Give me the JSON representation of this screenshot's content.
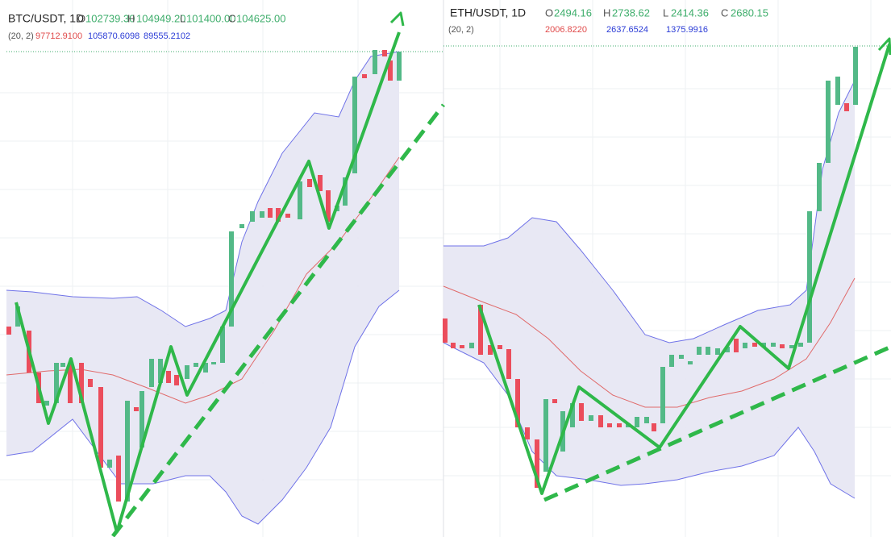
{
  "left": {
    "symbol": "BTC/USDT, 1D",
    "ohlc": [
      {
        "label": "O",
        "value": "102739.30"
      },
      {
        "label": "H",
        "value": "104949.20"
      },
      {
        "label": "L",
        "value": "101400.00"
      },
      {
        "label": "C",
        "value": "104625.00"
      }
    ],
    "indicator": {
      "params": "(20, 2)",
      "basis": "97712.9100",
      "upper": "105870.6098",
      "lower": "89555.2102"
    }
  },
  "right": {
    "symbol": "ETH/USDT, 1D",
    "ohlc": [
      {
        "label": "O",
        "value": "2494.16"
      },
      {
        "label": "H",
        "value": "2738.62"
      },
      {
        "label": "L",
        "value": "2414.36"
      },
      {
        "label": "C",
        "value": "2680.15"
      }
    ],
    "indicator": {
      "params": "(20, 2)",
      "basis": "2006.8220",
      "upper": "2637.6524",
      "lower": "1375.9916"
    }
  }
}
